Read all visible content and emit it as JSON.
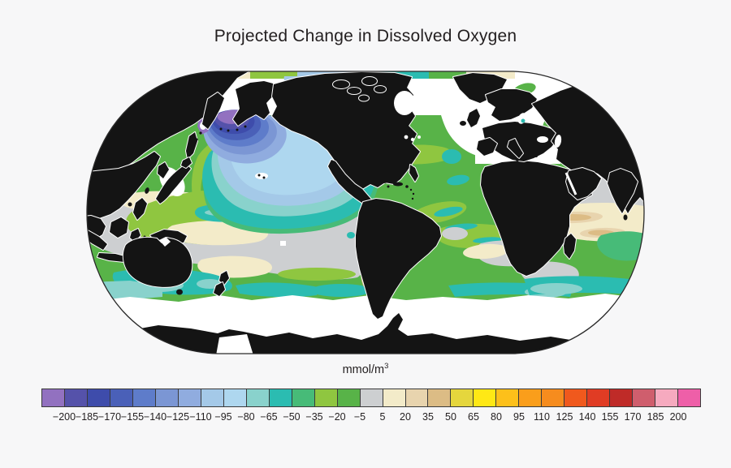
{
  "title": "Projected Change in Dissolved Oxygen",
  "colorbar": {
    "unit_label": "mmol/m",
    "unit_exponent": "3",
    "tick_labels": [
      "−200",
      "−185",
      "−170",
      "−155",
      "−140",
      "−125",
      "−110",
      "−95",
      "−80",
      "−65",
      "−50",
      "−35",
      "−20",
      "−5",
      "5",
      "20",
      "35",
      "50",
      "65",
      "80",
      "95",
      "110",
      "125",
      "140",
      "155",
      "170",
      "185",
      "200"
    ],
    "cell_colors": [
      "#9271c0",
      "#5552aa",
      "#3e4cab",
      "#4a60b8",
      "#5e7cca",
      "#7b96d4",
      "#90acdf",
      "#a4c9e8",
      "#aed7ef",
      "#89d2cc",
      "#2bbcb1",
      "#47bb78",
      "#8fc640",
      "#58b348",
      "#cdcfd1",
      "#f3ebc9",
      "#e8d4ae",
      "#dcbc85",
      "#e5d63d",
      "#ffe815",
      "#fdc01a",
      "#fa9e1b",
      "#f68c1e",
      "#f0591d",
      "#e03c24",
      "#bf2b28",
      "#cf5e6d",
      "#f6aabf",
      "#ee5fa8"
    ],
    "border_color": "#3a3a3a"
  },
  "map": {
    "projection": "robinson",
    "background_color": "#f7f7f8",
    "palette": {
      "purple": "#9271c0",
      "indigo": "#5552aa",
      "blue3": "#3e4cab",
      "blue2": "#4a60b8",
      "blue1": "#5e7cca",
      "peri2": "#7b96d4",
      "peri1": "#90acdf",
      "pale1": "#a4c9e8",
      "pale2": "#aed7ef",
      "lteal": "#89d2cc",
      "teal": "#2bbcb1",
      "gteal": "#47bb78",
      "ygreen": "#8fc640",
      "green": "#58b348",
      "gray": "#cdcfd1",
      "cream": "#f3ebc9",
      "tan": "#e8d4ae",
      "tan2": "#dcbc85",
      "olive": "#e5d63d",
      "yellow": "#ffe815",
      "amber": "#fdc01a",
      "orange1": "#fa9e1b",
      "orange2": "#f68c1e",
      "redorange": "#f0591d",
      "red": "#e03c24",
      "darkred": "#bf2b28",
      "rose": "#cf5e6d",
      "pink": "#f6aabf",
      "magenta": "#ee5fa8",
      "land": "#141414",
      "nodata": "#ffffff",
      "outline": "#2a2a2a"
    }
  }
}
